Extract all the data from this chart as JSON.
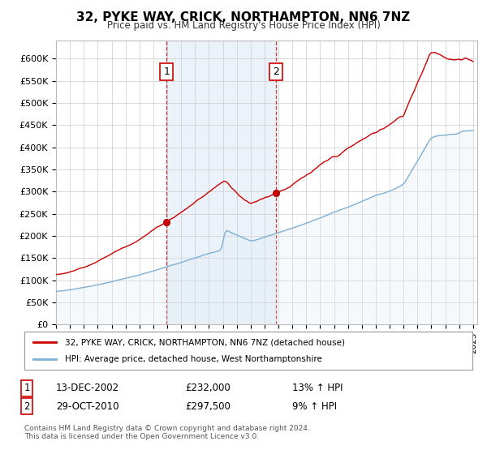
{
  "title": "32, PYKE WAY, CRICK, NORTHAMPTON, NN6 7NZ",
  "subtitle": "Price paid vs. HM Land Registry's House Price Index (HPI)",
  "ylabel_ticks": [
    "£0",
    "£50K",
    "£100K",
    "£150K",
    "£200K",
    "£250K",
    "£300K",
    "£350K",
    "£400K",
    "£450K",
    "£500K",
    "£550K",
    "£600K"
  ],
  "ytick_values": [
    0,
    50000,
    100000,
    150000,
    200000,
    250000,
    300000,
    350000,
    400000,
    450000,
    500000,
    550000,
    600000
  ],
  "ylim": [
    0,
    640000
  ],
  "xlim_start": 1995,
  "xlim_end": 2025.3,
  "line1_color": "#cc0000",
  "line2_color": "#7fb0d4",
  "line2_fill_color": "#deeaf5",
  "sale1_year": 2002.95,
  "sale1_value": 232000,
  "sale2_year": 2010.83,
  "sale2_value": 297500,
  "legend_line1": "32, PYKE WAY, CRICK, NORTHAMPTON, NN6 7NZ (detached house)",
  "legend_line2": "HPI: Average price, detached house, West Northamptonshire",
  "annotation1_date": "13-DEC-2002",
  "annotation1_price": "£232,000",
  "annotation1_change": "13% ↑ HPI",
  "annotation2_date": "29-OCT-2010",
  "annotation2_price": "£297,500",
  "annotation2_change": "9% ↑ HPI",
  "footnote": "Contains HM Land Registry data © Crown copyright and database right 2024.\nThis data is licensed under the Open Government Licence v3.0.",
  "background_color": "#ffffff",
  "grid_color": "#cccccc",
  "shaded_region_color": "#deeaf5"
}
